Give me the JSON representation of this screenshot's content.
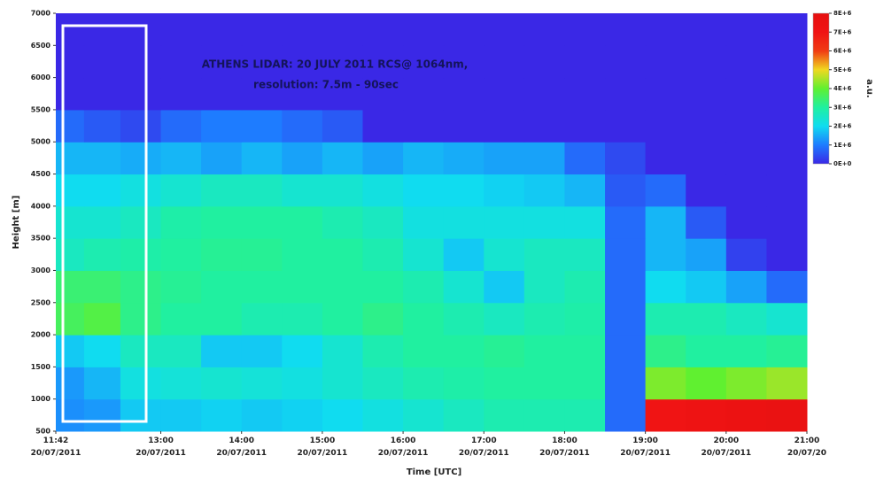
{
  "chart_data": {
    "type": "heatmap",
    "title": "ATHENS LIDAR: 20 JULY 2011 RCS@ 1064nm,",
    "subtitle": "resolution: 7.5m - 90sec",
    "x_label": "Time [UTC]",
    "y_label": "Height [m]",
    "colorbar_label": "a.u.",
    "xlim": [
      11.7,
      21
    ],
    "xticks": [
      {
        "value": 11.7,
        "label": "11:42\n20/07/2011"
      },
      {
        "value": 13,
        "label": "13:00\n20/07/2011"
      },
      {
        "value": 14,
        "label": "14:00\n20/07/2011"
      },
      {
        "value": 15,
        "label": "15:00\n20/07/2011"
      },
      {
        "value": 16,
        "label": "16:00\n20/07/2011"
      },
      {
        "value": 17,
        "label": "17:00\n20/07/2011"
      },
      {
        "value": 18,
        "label": "18:00\n20/07/2011"
      },
      {
        "value": 19,
        "label": "19:00\n20/07/2011"
      },
      {
        "value": 20,
        "label": "20:00\n20/07/2011"
      },
      {
        "value": 21,
        "label": "21:00\n20/07/20"
      }
    ],
    "ylim": [
      500,
      7000
    ],
    "yticks": [
      500,
      1000,
      1500,
      2000,
      2500,
      3000,
      3500,
      4000,
      4500,
      5000,
      5500,
      6000,
      6500,
      7000
    ],
    "x": [
      11.85,
      12.25,
      12.75,
      13.25,
      13.75,
      14.25,
      14.75,
      15.25,
      15.75,
      16.25,
      16.75,
      17.25,
      17.75,
      18.25,
      18.75,
      19.25,
      19.75,
      20.25,
      20.75
    ],
    "y": [
      750,
      1250,
      1750,
      2250,
      2750,
      3250,
      3750,
      4250,
      4750,
      5250,
      5750,
      6250,
      6750
    ],
    "values": [
      [
        1200000,
        1300000,
        1800000,
        1800000,
        1900000,
        1800000,
        1900000,
        2000000,
        2200000,
        2400000,
        2600000,
        2800000,
        2800000,
        2800000,
        800000,
        7000000,
        7200000,
        7400000,
        7600000
      ],
      [
        1300000,
        1600000,
        2200000,
        2300000,
        2400000,
        2300000,
        2200000,
        2400000,
        2600000,
        2800000,
        2900000,
        3000000,
        3000000,
        3000000,
        800000,
        4200000,
        4000000,
        4200000,
        4400000
      ],
      [
        1800000,
        2000000,
        2600000,
        2600000,
        1800000,
        1800000,
        2000000,
        2400000,
        2800000,
        3000000,
        3000000,
        3100000,
        3000000,
        3000000,
        800000,
        3200000,
        3000000,
        3000000,
        3100000
      ],
      [
        3600000,
        3800000,
        3200000,
        3000000,
        3000000,
        2800000,
        2800000,
        3000000,
        3200000,
        3000000,
        2800000,
        2600000,
        2800000,
        2900000,
        800000,
        2800000,
        2800000,
        2600000,
        2400000
      ],
      [
        3400000,
        3400000,
        3200000,
        3100000,
        3000000,
        3000000,
        3000000,
        3000000,
        3000000,
        2800000,
        2400000,
        1800000,
        2600000,
        2800000,
        800000,
        2000000,
        1800000,
        1400000,
        800000
      ],
      [
        2600000,
        2800000,
        2900000,
        3000000,
        3100000,
        3100000,
        3000000,
        3000000,
        2800000,
        2400000,
        1800000,
        2400000,
        2600000,
        2600000,
        800000,
        1600000,
        1400000,
        300000,
        0
      ],
      [
        2400000,
        2400000,
        2600000,
        2900000,
        3000000,
        3000000,
        3000000,
        2800000,
        2600000,
        2200000,
        2200000,
        2200000,
        2200000,
        2200000,
        800000,
        1600000,
        600000,
        0,
        0
      ],
      [
        2000000,
        2000000,
        2200000,
        2400000,
        2600000,
        2600000,
        2400000,
        2400000,
        2200000,
        2000000,
        2000000,
        1900000,
        1800000,
        1600000,
        600000,
        800000,
        0,
        0,
        0
      ],
      [
        1600000,
        1600000,
        1500000,
        1600000,
        1400000,
        1600000,
        1400000,
        1600000,
        1400000,
        1600000,
        1500000,
        1400000,
        1400000,
        800000,
        400000,
        0,
        0,
        0,
        0
      ],
      [
        800000,
        600000,
        400000,
        800000,
        1000000,
        1000000,
        800000,
        600000,
        0,
        0,
        0,
        0,
        0,
        0,
        0,
        0,
        0,
        0,
        0
      ],
      [
        0,
        0,
        0,
        0,
        0,
        0,
        0,
        0,
        0,
        0,
        0,
        0,
        0,
        0,
        0,
        0,
        0,
        0,
        0
      ],
      [
        0,
        0,
        0,
        0,
        0,
        0,
        0,
        0,
        0,
        0,
        0,
        0,
        0,
        0,
        0,
        0,
        0,
        0,
        0
      ],
      [
        0,
        0,
        0,
        0,
        0,
        0,
        0,
        0,
        0,
        0,
        0,
        0,
        0,
        0,
        0,
        0,
        0,
        0,
        0
      ]
    ],
    "clim": [
      0,
      8000000
    ],
    "cticks": [
      {
        "value": 0,
        "label": "0E+0"
      },
      {
        "value": 1000000,
        "label": "1E+6"
      },
      {
        "value": 2000000,
        "label": "2E+6"
      },
      {
        "value": 3000000,
        "label": "3E+6"
      },
      {
        "value": 4000000,
        "label": "4E+6"
      },
      {
        "value": 5000000,
        "label": "5E+6"
      },
      {
        "value": 6000000,
        "label": "6E+6"
      },
      {
        "value": 7000000,
        "label": "7E+6"
      },
      {
        "value": 8000000,
        "label": "8E+6"
      }
    ],
    "colorscale": [
      "#3a28e6",
      "#1e7cff",
      "#10dcf0",
      "#20f0a0",
      "#60f030",
      "#f0d820",
      "#f03c14",
      "#f01414",
      "#e61010"
    ]
  }
}
